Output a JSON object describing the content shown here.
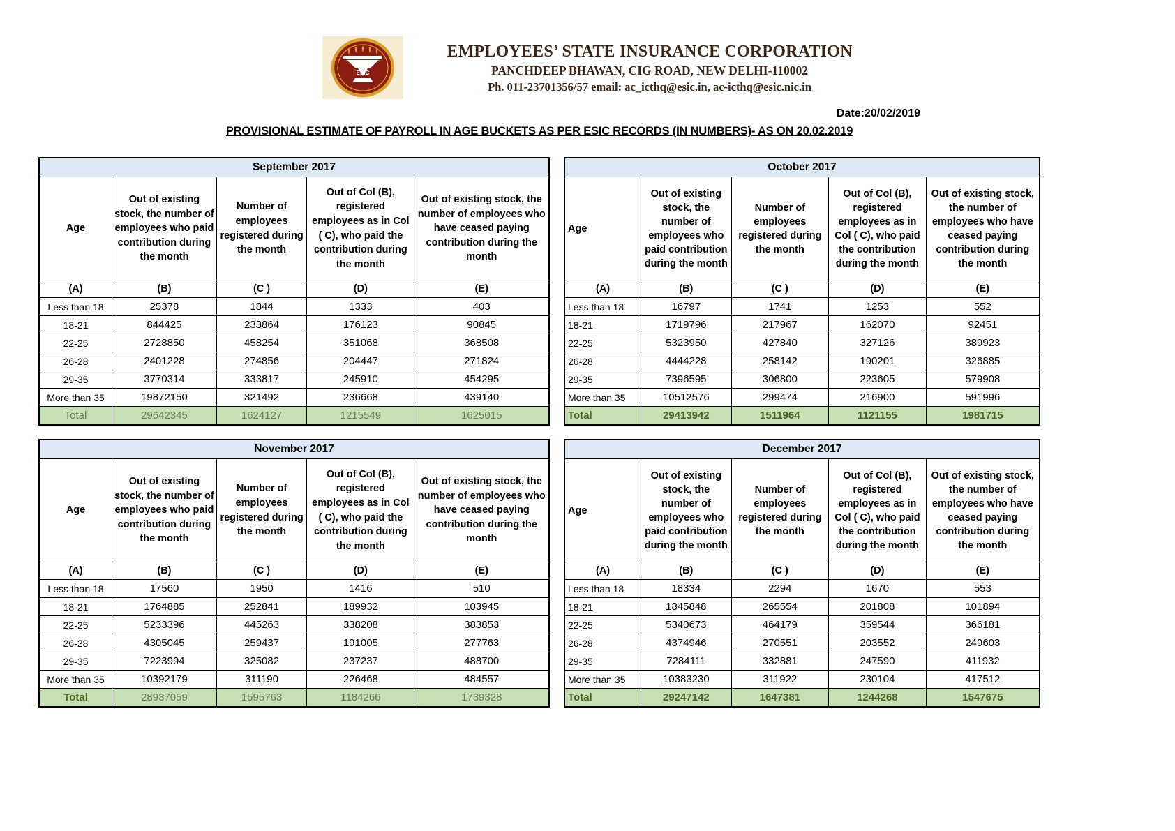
{
  "letterhead": {
    "org_name": "EMPLOYEES’ STATE INSURANCE CORPORATION",
    "address_line": "PANCHDEEP BHAWAN, CIG ROAD, NEW DELHI-110002",
    "contact_line": "Ph. 011-23701356/57 email: ac_icthq@esic.in, ac-icthq@esic.nic.in",
    "logo_text": "ESIC"
  },
  "date_label": "Date:20/02/2019",
  "title": "PROVISIONAL ESTIMATE OF PAYROLL IN AGE BUCKETS AS PER ESIC RECORDS (IN NUMBERS)- AS ON 20.02.2019",
  "column_headers": {
    "age": "Age",
    "b": "Out of existing stock, the number of employees who paid contribution during the month",
    "c": "Number of employees registered during the month",
    "d": "Out of Col (B), registered employees as in Col ( C), who paid the contribution during the month",
    "e": "Out of existing stock, the number of employees who have ceased paying contribution during the month",
    "letters": [
      "(A)",
      "(B)",
      "(C )",
      "(D)",
      "(E)"
    ]
  },
  "tables": [
    {
      "month": "September 2017",
      "rows": [
        {
          "age": "Less than 18",
          "values": [
            "25378",
            "1844",
            "1333",
            "403"
          ]
        },
        {
          "age": "18-21",
          "values": [
            "844425",
            "233864",
            "176123",
            "90845"
          ]
        },
        {
          "age": "22-25",
          "values": [
            "2728850",
            "458254",
            "351068",
            "368508"
          ]
        },
        {
          "age": "26-28",
          "values": [
            "2401228",
            "274856",
            "204447",
            "271824"
          ]
        },
        {
          "age": "29-35",
          "values": [
            "3770314",
            "333817",
            "245910",
            "454295"
          ]
        },
        {
          "age": "More than 35",
          "values": [
            "19872150",
            "321492",
            "236668",
            "439140"
          ]
        }
      ],
      "total": {
        "label": "Total",
        "values": [
          "29642345",
          "1624127",
          "1215549",
          "1625015"
        ],
        "bold_label": false,
        "bold_values": false
      }
    },
    {
      "month": "October 2017",
      "rows": [
        {
          "age": "Less than 18",
          "values": [
            "16797",
            "1741",
            "1253",
            "552"
          ]
        },
        {
          "age": "18-21",
          "values": [
            "1719796",
            "217967",
            "162070",
            "92451"
          ]
        },
        {
          "age": "22-25",
          "values": [
            "5323950",
            "427840",
            "327126",
            "389923"
          ]
        },
        {
          "age": "26-28",
          "values": [
            "4444228",
            "258142",
            "190201",
            "326885"
          ]
        },
        {
          "age": "29-35",
          "values": [
            "7396595",
            "306800",
            "223605",
            "579908"
          ]
        },
        {
          "age": "More than 35",
          "values": [
            "10512576",
            "299474",
            "216900",
            "591996"
          ]
        }
      ],
      "total": {
        "label": "Total",
        "values": [
          "29413942",
          "1511964",
          "1121155",
          "1981715"
        ],
        "bold_label": true,
        "bold_values": true
      }
    },
    {
      "month": "November 2017",
      "rows": [
        {
          "age": "Less than 18",
          "values": [
            "17560",
            "1950",
            "1416",
            "510"
          ]
        },
        {
          "age": "18-21",
          "values": [
            "1764885",
            "252841",
            "189932",
            "103945"
          ]
        },
        {
          "age": "22-25",
          "values": [
            "5233396",
            "445263",
            "338208",
            "383853"
          ]
        },
        {
          "age": "26-28",
          "values": [
            "4305045",
            "259437",
            "191005",
            "277763"
          ]
        },
        {
          "age": "29-35",
          "values": [
            "7223994",
            "325082",
            "237237",
            "488700"
          ]
        },
        {
          "age": "More than 35",
          "values": [
            "10392179",
            "311190",
            "226468",
            "484557"
          ]
        }
      ],
      "total": {
        "label": "Total",
        "values": [
          "28937059",
          "1595763",
          "1184266",
          "1739328"
        ],
        "bold_label": true,
        "bold_values": false
      }
    },
    {
      "month": "December 2017",
      "rows": [
        {
          "age": "Less than 18",
          "values": [
            "18334",
            "2294",
            "1670",
            "553"
          ]
        },
        {
          "age": "18-21",
          "values": [
            "1845848",
            "265554",
            "201808",
            "101894"
          ]
        },
        {
          "age": "22-25",
          "values": [
            "5340673",
            "464179",
            "359544",
            "366181"
          ]
        },
        {
          "age": "26-28",
          "values": [
            "4374946",
            "270551",
            "203552",
            "249603"
          ]
        },
        {
          "age": "29-35",
          "values": [
            "7284111",
            "332881",
            "247590",
            "411932"
          ]
        },
        {
          "age": "More than 35",
          "values": [
            "10383230",
            "311922",
            "230104",
            "417512"
          ]
        }
      ],
      "total": {
        "label": "Total",
        "values": [
          "29247142",
          "1647381",
          "1244268",
          "1547675"
        ],
        "bold_label": true,
        "bold_values": true
      }
    }
  ],
  "colors": {
    "month_bar_bg": "#DCE9F5",
    "total_row_bg": "#C6E0B4",
    "total_text_muted": "#6B7D60",
    "total_text_bold": "#4F6228",
    "logo_maroon": "#8C1D12",
    "logo_gold": "#D99E2B",
    "logo_bg": "#F6EBD3",
    "letterhead_text": "#3A2415"
  }
}
